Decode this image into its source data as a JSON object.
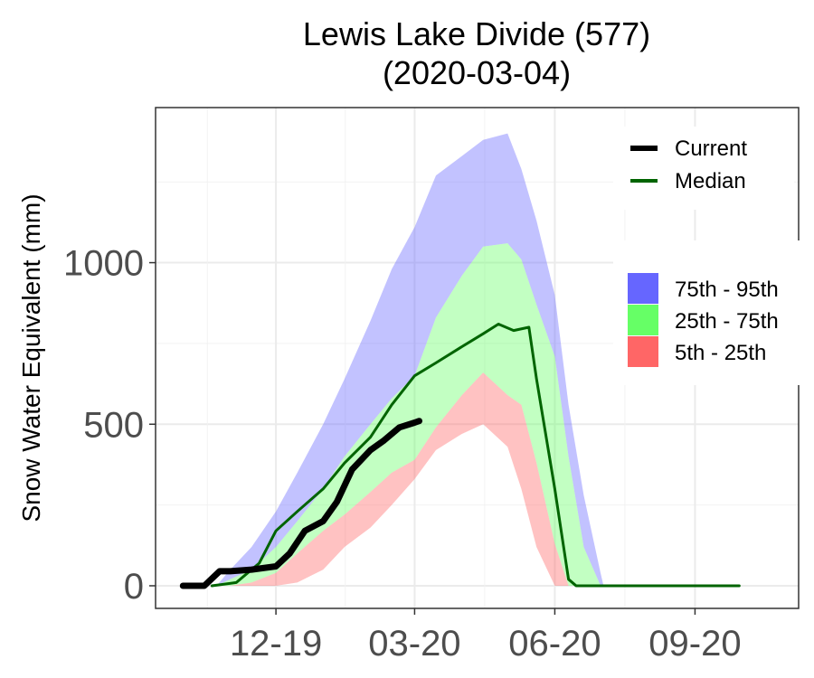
{
  "chart_data": {
    "type": "area",
    "title": "Lewis Lake Divide (577)",
    "subtitle": "(2020-03-04)",
    "xlabel": "",
    "ylabel": "Snow Water Equivalent (mm)",
    "x_ticks": [
      "12-19",
      "03-20",
      "06-20",
      "09-20"
    ],
    "x_tick_dates": [
      "2019-12-01",
      "2020-03-01",
      "2020-06-01",
      "2020-09-01"
    ],
    "xlim": [
      "2019-09-13",
      "2020-11-08"
    ],
    "y_ticks": [
      0,
      500,
      1000
    ],
    "ylim": [
      -70,
      1480
    ],
    "grid": true,
    "legend_position": "top-right",
    "colors": {
      "current": "#000000",
      "median": "#006400",
      "band_75_95": "#6666ff",
      "band_25_75": "#66ff66",
      "band_5_25": "#ff6666"
    },
    "legend_lines": [
      {
        "label": "Current",
        "key": "current"
      },
      {
        "label": "Median",
        "key": "median"
      }
    ],
    "legend_bands": [
      {
        "label": "75th - 95th",
        "key": "band_75_95"
      },
      {
        "label": "25th - 75th",
        "key": "band_25_75"
      },
      {
        "label": "5th - 25th",
        "key": "band_5_25"
      }
    ],
    "bands": {
      "x": [
        "2019-10-23",
        "2019-11-01",
        "2019-11-15",
        "2019-12-01",
        "2019-12-15",
        "2020-01-01",
        "2020-01-15",
        "2020-02-01",
        "2020-02-15",
        "2020-03-01",
        "2020-03-15",
        "2020-04-01",
        "2020-04-15",
        "2020-05-01",
        "2020-05-10",
        "2020-05-20",
        "2020-06-01",
        "2020-06-10",
        "2020-06-20",
        "2020-07-01",
        "2020-07-03"
      ],
      "p5": [
        0,
        0,
        0,
        0,
        10,
        50,
        120,
        180,
        250,
        330,
        420,
        470,
        500,
        430,
        300,
        120,
        0,
        0,
        0,
        0,
        0
      ],
      "p25": [
        0,
        0,
        10,
        40,
        100,
        170,
        220,
        290,
        350,
        390,
        490,
        590,
        660,
        590,
        560,
        380,
        130,
        0,
        0,
        0,
        0
      ],
      "p75": [
        0,
        20,
        50,
        120,
        200,
        300,
        400,
        500,
        580,
        650,
        830,
        960,
        1050,
        1060,
        1010,
        870,
        710,
        400,
        120,
        0,
        0
      ],
      "p95": [
        0,
        50,
        120,
        230,
        350,
        500,
        640,
        820,
        980,
        1110,
        1270,
        1330,
        1380,
        1400,
        1290,
        1130,
        900,
        560,
        280,
        40,
        0
      ]
    },
    "series": [
      {
        "name": "Median",
        "x": [
          "2019-10-20",
          "2019-11-05",
          "2019-11-20",
          "2019-12-01",
          "2019-12-15",
          "2020-01-01",
          "2020-01-15",
          "2020-02-01",
          "2020-02-15",
          "2020-03-01",
          "2020-03-15",
          "2020-04-01",
          "2020-04-15",
          "2020-04-25",
          "2020-05-05",
          "2020-05-15",
          "2020-05-20",
          "2020-06-01",
          "2020-06-10",
          "2020-06-15",
          "2020-09-30"
        ],
        "values": [
          0,
          10,
          70,
          170,
          230,
          300,
          380,
          460,
          560,
          650,
          690,
          740,
          780,
          810,
          790,
          800,
          640,
          300,
          20,
          0,
          0
        ]
      },
      {
        "name": "Current",
        "x": [
          "2019-10-01",
          "2019-10-15",
          "2019-10-25",
          "2019-11-01",
          "2019-11-15",
          "2019-12-01",
          "2019-12-10",
          "2019-12-20",
          "2020-01-01",
          "2020-01-10",
          "2020-01-20",
          "2020-02-01",
          "2020-02-10",
          "2020-02-20",
          "2020-03-01",
          "2020-03-04"
        ],
        "values": [
          0,
          0,
          45,
          45,
          50,
          60,
          100,
          170,
          200,
          260,
          360,
          420,
          450,
          490,
          505,
          510
        ]
      }
    ]
  }
}
